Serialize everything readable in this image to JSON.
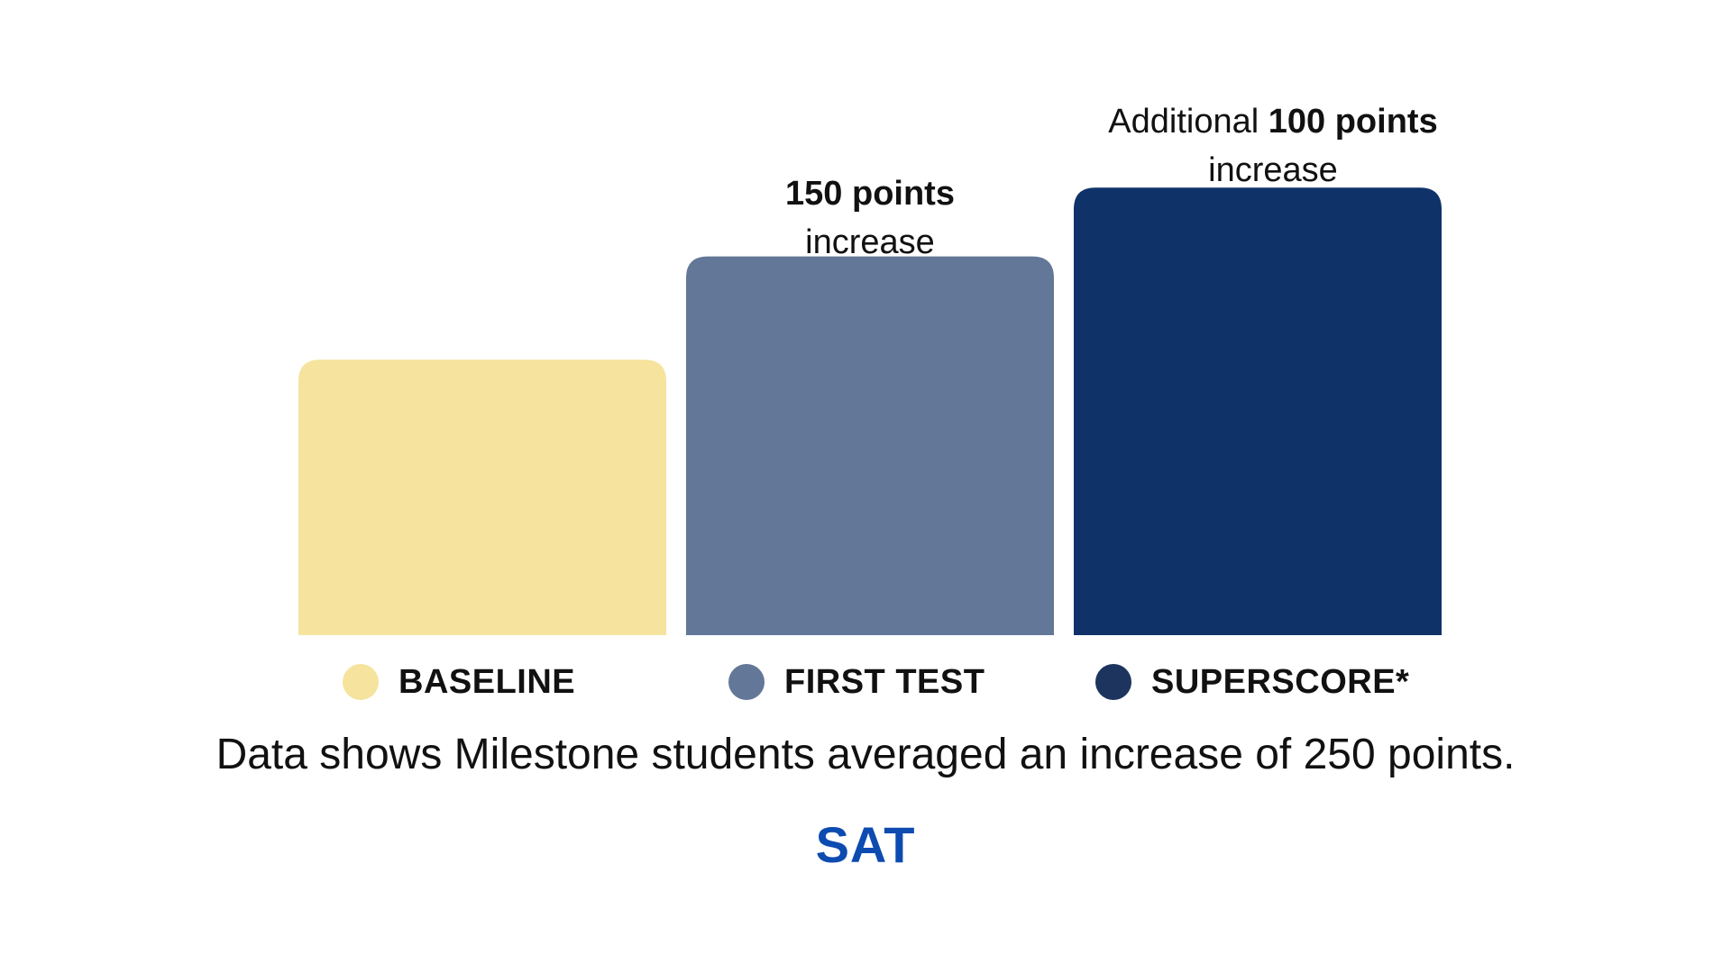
{
  "chart_data": {
    "type": "bar",
    "categories": [
      "BASELINE",
      "FIRST TEST",
      "SUPERSCORE*"
    ],
    "values": [
      1000,
      1150,
      1250
    ],
    "ylim": [
      600,
      1300
    ],
    "colors": [
      "#F6E39D",
      "#637798",
      "#0F3369"
    ],
    "legend_colors": [
      "#F6E39D",
      "#637798",
      "#1D355E"
    ],
    "annotations": [
      {
        "category": "FIRST TEST",
        "bold": "150 points",
        "suffix": "increase"
      },
      {
        "category": "SUPERSCORE*",
        "prefix": "Additional ",
        "bold": "100 points",
        "suffix": "increase"
      }
    ],
    "grid": false,
    "legend_placement": "bottom"
  },
  "footnote": "Data shows Milestone students averaged an increase of 250 points.",
  "brand": {
    "text": "SAT",
    "color": "#0D4BB1"
  }
}
